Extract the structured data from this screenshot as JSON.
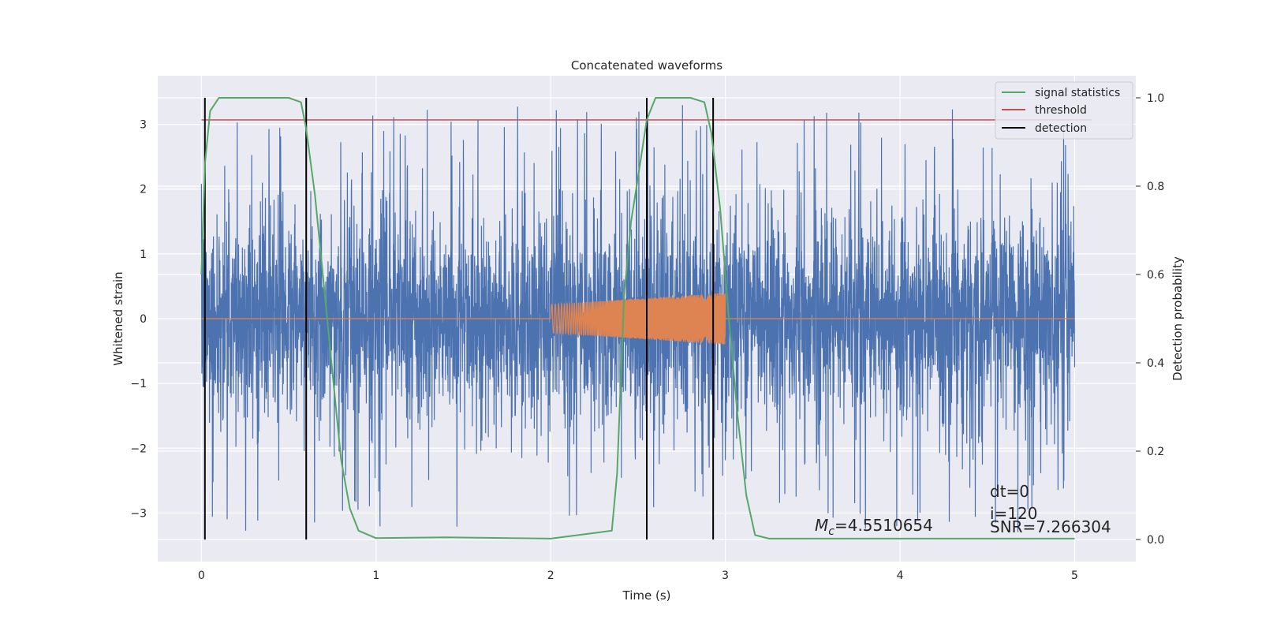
{
  "chart_data": {
    "type": "line",
    "title": "Concatenated waveforms",
    "xlabel": "Time (s)",
    "ylabel": "Whitened strain",
    "ylabel_right": "Detection probability",
    "xlim": [
      -0.25,
      5.35
    ],
    "ylim": [
      -3.75,
      3.75
    ],
    "ylim_right": [
      -0.05,
      1.05
    ],
    "x_ticks": [
      0,
      1,
      2,
      3,
      4,
      5
    ],
    "y_ticks": [
      -3,
      -2,
      -1,
      0,
      1,
      2,
      3
    ],
    "y_ticks_right": [
      0.0,
      0.2,
      0.4,
      0.6,
      0.8,
      1.0
    ],
    "x_tick_labels": [
      "0",
      "1",
      "2",
      "3",
      "4",
      "5"
    ],
    "y_tick_labels": [
      "−3",
      "−2",
      "−1",
      "0",
      "1",
      "2",
      "3"
    ],
    "y_tick_labels_right": [
      "0.0",
      "0.2",
      "0.4",
      "0.6",
      "0.8",
      "1.0"
    ],
    "grid": true,
    "legend_position": "top-right",
    "colors": {
      "strain": "#4c72b0",
      "template": "#dd8452",
      "signal_statistics": "#55a868",
      "threshold": "#c44e52",
      "detection": "#000000",
      "background": "#eaeaf2",
      "grid": "#ffffff"
    },
    "series": [
      {
        "key": "strain",
        "axis": "left",
        "x_range": [
          0,
          5
        ],
        "amplitude_envelope": 2.5
      },
      {
        "key": "template",
        "axis": "left",
        "x": [
          0,
          2.0,
          2.5,
          3.0,
          3.0,
          5.0
        ],
        "amplitude": [
          0,
          0.22,
          0.3,
          0.4,
          0,
          0
        ]
      },
      {
        "key": "signal_statistics",
        "name": "signal statistics",
        "axis": "right",
        "x": [
          0,
          0.02,
          0.05,
          0.1,
          0.5,
          0.57,
          0.6,
          0.65,
          0.7,
          0.75,
          0.8,
          0.85,
          0.9,
          1.0,
          1.4,
          2.0,
          2.35,
          2.38,
          2.42,
          2.46,
          2.5,
          2.55,
          2.6,
          2.8,
          2.88,
          2.92,
          2.97,
          3.02,
          3.07,
          3.12,
          3.17,
          3.25,
          5.0
        ],
        "y": [
          0.6,
          0.85,
          0.97,
          1.0,
          1.0,
          0.99,
          0.93,
          0.78,
          0.58,
          0.38,
          0.18,
          0.07,
          0.02,
          0.003,
          0.005,
          0.002,
          0.02,
          0.15,
          0.55,
          0.72,
          0.82,
          0.95,
          1.0,
          1.0,
          0.99,
          0.92,
          0.75,
          0.5,
          0.28,
          0.1,
          0.01,
          0.002,
          0.002
        ]
      },
      {
        "key": "threshold",
        "name": "threshold",
        "axis": "right",
        "x": [
          0,
          5.1
        ],
        "y": [
          0.95,
          0.95
        ]
      },
      {
        "key": "detection",
        "name": "detection",
        "axis": "right",
        "x": [
          0.02,
          0.6,
          2.55,
          2.93
        ],
        "y_range": [
          0.0,
          1.0
        ]
      }
    ],
    "annotations": [
      {
        "text_math": "M_c=4.5510654",
        "x": 3.5,
        "y": -3.3
      },
      {
        "text": "dt=0",
        "x": 4.5,
        "y": -2.7
      },
      {
        "text": "i=120",
        "x": 4.5,
        "y": -3.03
      },
      {
        "text": "SNR=7.266304",
        "x": 4.5,
        "y": -3.3
      }
    ]
  }
}
